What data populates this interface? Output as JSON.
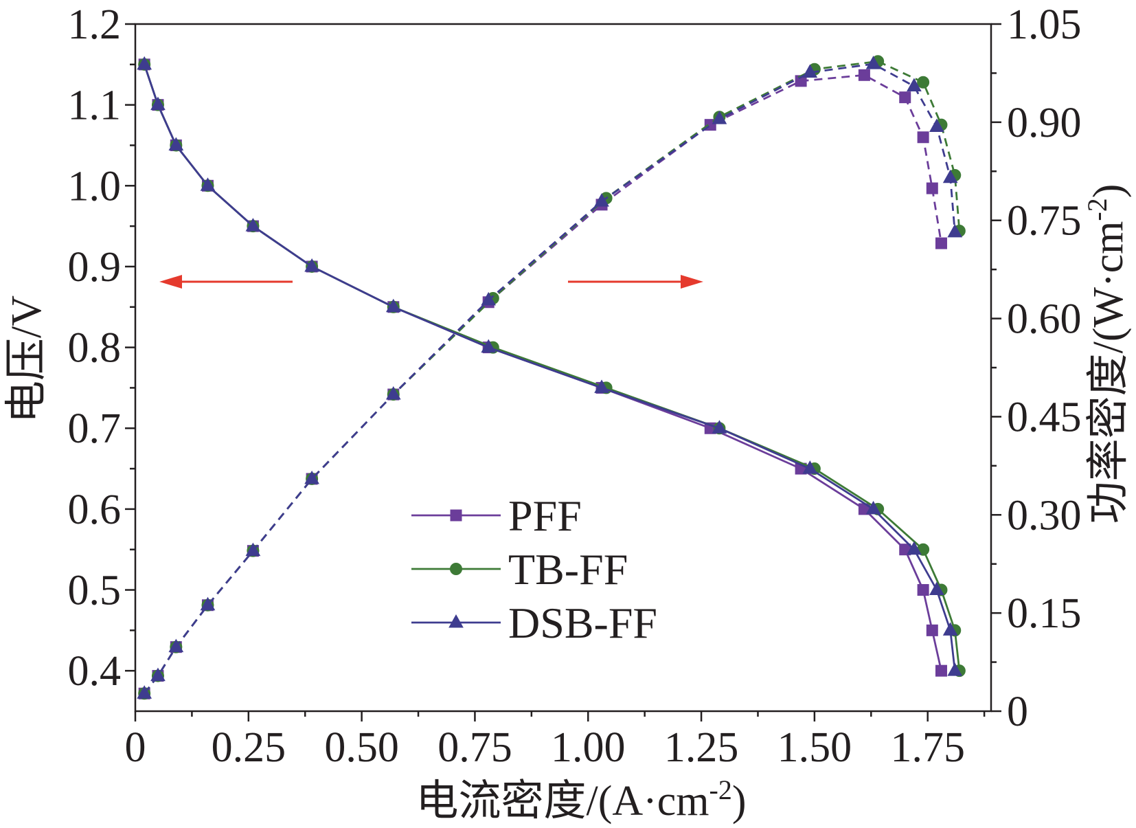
{
  "chart_data": {
    "type": "line",
    "grid": false,
    "legend_position": "lower-center",
    "xlabel": {
      "text": "电流密度/(A·cm",
      "sup": "-2",
      "tail": ")"
    },
    "ylabel_left": {
      "text": "电压/V"
    },
    "ylabel_right": {
      "text": "功率密度/(W·cm",
      "sup": "-2",
      "tail": ")"
    },
    "xlim": [
      0,
      1.89
    ],
    "ylim_left": [
      0.35,
      1.2
    ],
    "ylim_right": [
      0,
      1.05
    ],
    "x_axis": {
      "ticks": [
        0,
        0.25,
        0.5,
        0.75,
        1.0,
        1.25,
        1.5,
        1.75
      ],
      "tick_labels": [
        "0",
        "0.25",
        "0.50",
        "0.75",
        "1.00",
        "1.25",
        "1.50",
        "1.75"
      ]
    },
    "y_left_axis": {
      "ticks": [
        0.4,
        0.5,
        0.6,
        0.7,
        0.8,
        0.9,
        1.0,
        1.1,
        1.2
      ],
      "tick_labels": [
        "0.4",
        "0.5",
        "0.6",
        "0.7",
        "0.8",
        "0.9",
        "1.0",
        "1.1",
        "1.2"
      ]
    },
    "y_right_axis": {
      "ticks": [
        0,
        0.15,
        0.3,
        0.45,
        0.6,
        0.75,
        0.9,
        1.05
      ],
      "tick_labels": [
        "0",
        "0.15",
        "0.30",
        "0.45",
        "0.60",
        "0.75",
        "0.90",
        "1.05"
      ]
    },
    "series": [
      {
        "name": "PFF",
        "color": "#6b3d9a",
        "marker": "square-marker-icon",
        "current_density": [
          0.02,
          0.05,
          0.09,
          0.16,
          0.26,
          0.39,
          0.57,
          0.78,
          1.03,
          1.27,
          1.47,
          1.61,
          1.7,
          1.74,
          1.76,
          1.78
        ],
        "voltage": [
          1.15,
          1.1,
          1.05,
          1.0,
          0.95,
          0.9,
          0.85,
          0.8,
          0.75,
          0.7,
          0.65,
          0.6,
          0.55,
          0.5,
          0.45,
          0.4
        ],
        "power_density": [
          0.027,
          0.054,
          0.098,
          0.162,
          0.245,
          0.355,
          0.484,
          0.625,
          0.774,
          0.896,
          0.963,
          0.972,
          0.938,
          0.877,
          0.799,
          0.715
        ]
      },
      {
        "name": "TB-FF",
        "color": "#3d7a36",
        "marker": "circle-marker-icon",
        "current_density": [
          0.02,
          0.05,
          0.09,
          0.16,
          0.26,
          0.39,
          0.57,
          0.79,
          1.04,
          1.29,
          1.5,
          1.64,
          1.74,
          1.78,
          1.81,
          1.82
        ],
        "voltage": [
          1.15,
          1.1,
          1.05,
          1.0,
          0.95,
          0.9,
          0.85,
          0.8,
          0.75,
          0.7,
          0.65,
          0.6,
          0.55,
          0.5,
          0.45,
          0.4
        ],
        "power_density": [
          0.027,
          0.054,
          0.098,
          0.162,
          0.245,
          0.355,
          0.484,
          0.631,
          0.784,
          0.908,
          0.981,
          0.993,
          0.961,
          0.896,
          0.819,
          0.734
        ]
      },
      {
        "name": "DSB-FF",
        "color": "#3e3c8f",
        "marker": "triangle-marker-icon",
        "current_density": [
          0.02,
          0.05,
          0.09,
          0.16,
          0.26,
          0.39,
          0.57,
          0.78,
          1.03,
          1.29,
          1.49,
          1.63,
          1.72,
          1.77,
          1.8,
          1.81
        ],
        "voltage": [
          1.15,
          1.1,
          1.05,
          1.0,
          0.95,
          0.9,
          0.85,
          0.8,
          0.75,
          0.7,
          0.65,
          0.6,
          0.55,
          0.5,
          0.45,
          0.4
        ],
        "power_density": [
          0.027,
          0.054,
          0.098,
          0.162,
          0.245,
          0.355,
          0.484,
          0.628,
          0.779,
          0.905,
          0.976,
          0.989,
          0.955,
          0.893,
          0.815,
          0.732
        ]
      }
    ],
    "arrows": [
      {
        "icon": "arrow-left-icon",
        "color": "#e53a2d"
      },
      {
        "icon": "arrow-right-icon",
        "color": "#e53a2d"
      }
    ]
  }
}
